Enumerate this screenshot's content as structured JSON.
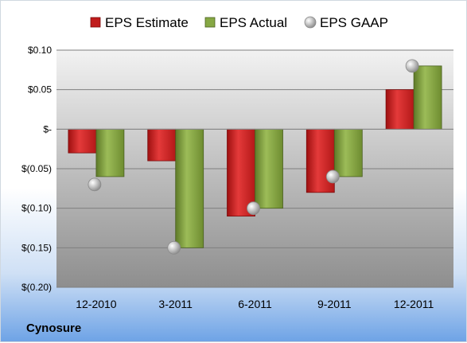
{
  "chart_data": {
    "type": "bar",
    "categories": [
      "12-2010",
      "3-2011",
      "6-2011",
      "9-2011",
      "12-2011"
    ],
    "series": [
      {
        "name": "EPS Estimate",
        "kind": "bar",
        "color": "#cc2222",
        "values": [
          -0.03,
          -0.04,
          -0.11,
          -0.08,
          0.05
        ]
      },
      {
        "name": "EPS Actual",
        "kind": "bar",
        "color": "#7a9a3a",
        "values": [
          -0.06,
          -0.15,
          -0.1,
          -0.06,
          0.08
        ]
      },
      {
        "name": "EPS GAAP",
        "kind": "marker",
        "color": "#b8b8b8",
        "values": [
          -0.07,
          -0.15,
          -0.1,
          -0.06,
          0.08
        ]
      }
    ],
    "ylim": [
      -0.2,
      0.1
    ],
    "yticks": [
      0.1,
      0.05,
      0,
      -0.05,
      -0.1,
      -0.15,
      -0.2
    ],
    "ytick_labels": [
      "$0.10",
      "$0.05",
      "$-",
      "$(0.05)",
      "$(0.10)",
      "$(0.15)",
      "$(0.20)"
    ],
    "legend_position": "top",
    "grid": true
  },
  "company": "Cynosure"
}
